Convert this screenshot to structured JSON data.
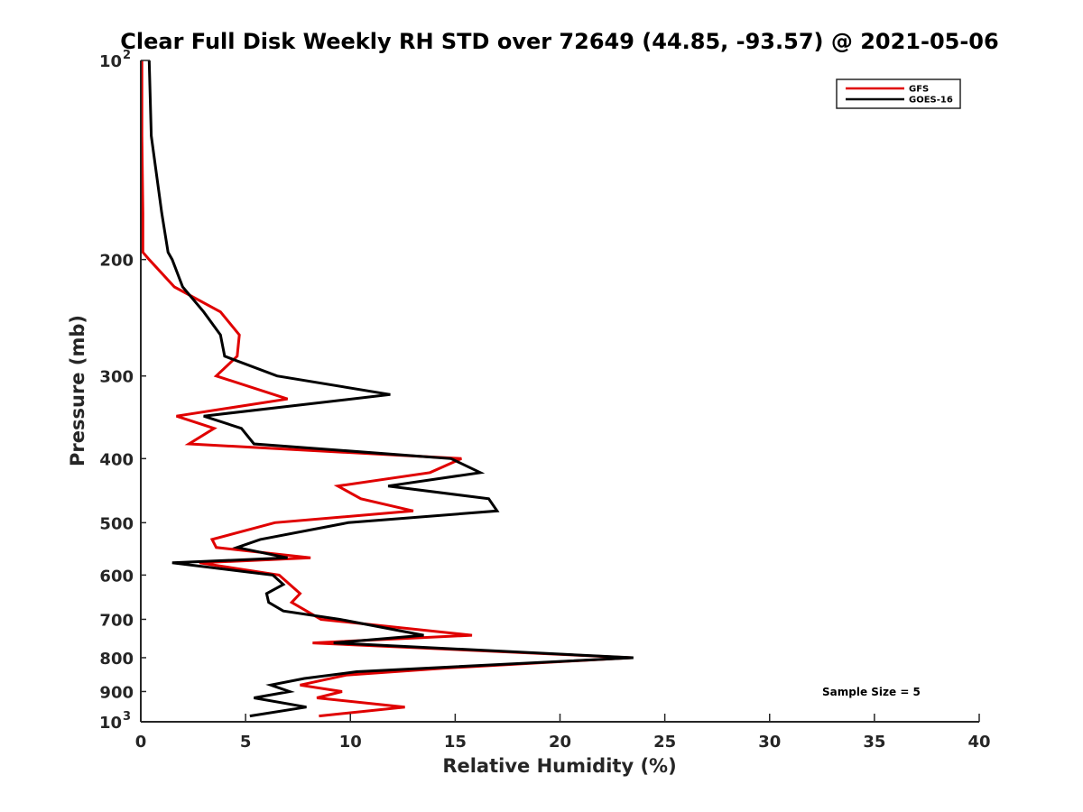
{
  "chart_data": {
    "type": "line",
    "title": "Clear Full Disk Weekly RH STD over 72649 (44.85, -93.57) @ 2021-05-06",
    "xlabel": "Relative Humidity (%)",
    "ylabel": "Pressure (mb)",
    "xlim": [
      0,
      40
    ],
    "ylim": [
      100,
      1000
    ],
    "y_scale": "log",
    "y_reversed": true,
    "grid": false,
    "legend_position": "top-right",
    "x_ticks": [
      0,
      5,
      10,
      15,
      20,
      25,
      30,
      35,
      40
    ],
    "x_tick_labels": [
      "0",
      "5",
      "10",
      "15",
      "20",
      "25",
      "30",
      "35",
      "40"
    ],
    "y_ticks": [
      200,
      300,
      400,
      500,
      600,
      700,
      800,
      900
    ],
    "y_tick_labels": [
      "200",
      "300",
      "400",
      "500",
      "600",
      "700",
      "800",
      "900"
    ],
    "y_decade_labels": [
      {
        "value": 100,
        "base": "10",
        "exp": "2"
      },
      {
        "value": 1000,
        "base": "10",
        "exp": "3"
      }
    ],
    "annotation": "Sample Size = 5",
    "series": [
      {
        "name": "GFS",
        "color": "#e00000",
        "points": [
          [
            0.05,
            100
          ],
          [
            0.05,
            130
          ],
          [
            0.1,
            170
          ],
          [
            0.1,
            195
          ],
          [
            0.4,
            200
          ],
          [
            1.6,
            220
          ],
          [
            3.8,
            240
          ],
          [
            4.7,
            260
          ],
          [
            4.6,
            280
          ],
          [
            3.6,
            300
          ],
          [
            7.0,
            325
          ],
          [
            1.7,
            345
          ],
          [
            3.5,
            360
          ],
          [
            2.3,
            380
          ],
          [
            15.3,
            400
          ],
          [
            13.8,
            420
          ],
          [
            9.4,
            440
          ],
          [
            10.5,
            460
          ],
          [
            13.0,
            480
          ],
          [
            6.4,
            500
          ],
          [
            3.4,
            530
          ],
          [
            3.6,
            545
          ],
          [
            8.1,
            565
          ],
          [
            2.8,
            575
          ],
          [
            6.6,
            600
          ],
          [
            7.6,
            640
          ],
          [
            7.2,
            660
          ],
          [
            8.6,
            700
          ],
          [
            15.8,
            740
          ],
          [
            8.2,
            760
          ],
          [
            23.4,
            800
          ],
          [
            14.4,
            830
          ],
          [
            9.8,
            850
          ],
          [
            7.6,
            880
          ],
          [
            9.6,
            900
          ],
          [
            8.4,
            920
          ],
          [
            12.6,
            950
          ],
          [
            8.5,
            980
          ]
        ]
      },
      {
        "name": "GOES-16",
        "color": "#000000",
        "points": [
          [
            0.4,
            100
          ],
          [
            0.5,
            130
          ],
          [
            1.0,
            170
          ],
          [
            1.3,
            195
          ],
          [
            1.5,
            200
          ],
          [
            2.0,
            220
          ],
          [
            3.0,
            240
          ],
          [
            3.8,
            260
          ],
          [
            4.0,
            280
          ],
          [
            6.5,
            300
          ],
          [
            11.9,
            320
          ],
          [
            3.0,
            345
          ],
          [
            4.8,
            360
          ],
          [
            5.4,
            380
          ],
          [
            14.8,
            400
          ],
          [
            16.2,
            420
          ],
          [
            11.8,
            440
          ],
          [
            16.6,
            460
          ],
          [
            17.0,
            480
          ],
          [
            9.9,
            500
          ],
          [
            5.7,
            530
          ],
          [
            4.6,
            545
          ],
          [
            7.0,
            565
          ],
          [
            1.5,
            575
          ],
          [
            6.3,
            600
          ],
          [
            6.8,
            620
          ],
          [
            6.0,
            640
          ],
          [
            6.1,
            660
          ],
          [
            6.8,
            680
          ],
          [
            9.5,
            700
          ],
          [
            13.5,
            740
          ],
          [
            9.2,
            760
          ],
          [
            23.5,
            800
          ],
          [
            10.3,
            840
          ],
          [
            7.8,
            860
          ],
          [
            6.2,
            880
          ],
          [
            7.1,
            900
          ],
          [
            5.4,
            920
          ],
          [
            7.9,
            950
          ],
          [
            5.2,
            980
          ]
        ]
      }
    ]
  }
}
